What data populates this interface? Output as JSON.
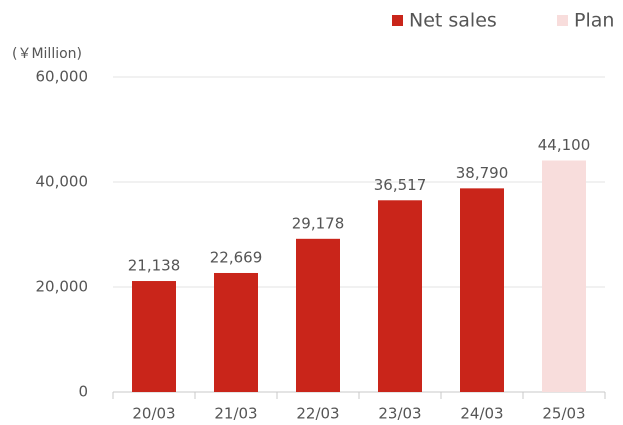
{
  "chart_data": {
    "type": "bar",
    "y_axis_label": "(￥Million)",
    "categories": [
      "20/03",
      "21/03",
      "22/03",
      "23/03",
      "24/03",
      "25/03"
    ],
    "series": [
      {
        "name": "Net sales",
        "color": "#c9251a",
        "values": [
          21138,
          22669,
          29178,
          36517,
          38790,
          null
        ],
        "value_labels": [
          "21,138",
          "22,669",
          "29,178",
          "36,517",
          "38,790",
          null
        ]
      },
      {
        "name": "Plan",
        "color": "#f8dddc",
        "values": [
          null,
          null,
          null,
          null,
          null,
          44100
        ],
        "value_labels": [
          null,
          null,
          null,
          null,
          null,
          "44,100"
        ]
      }
    ],
    "ylim": [
      0,
      60000
    ],
    "yticks": [
      0,
      {
        "value": 20000,
        "label": "20,000"
      },
      {
        "value": 40000,
        "label": "40,000"
      },
      {
        "value": 60000,
        "label": "60,000"
      }
    ],
    "grid": true,
    "legend": "top-right"
  }
}
